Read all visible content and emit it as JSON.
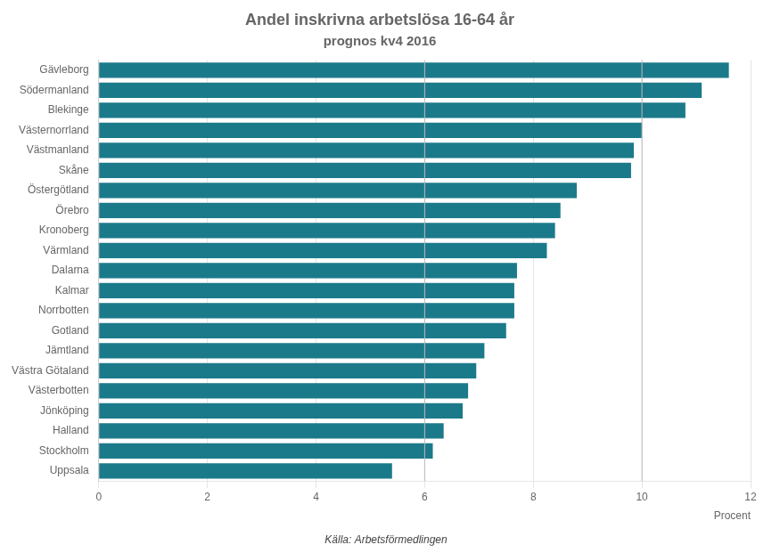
{
  "chart_data": {
    "type": "bar",
    "orientation": "horizontal",
    "title": "Andel inskrivna arbetslösa 16-64 år",
    "subtitle": "prognos kv4 2016",
    "categories": [
      "Gävleborg",
      "Södermanland",
      "Blekinge",
      "Västernorrland",
      "Västmanland",
      "Skåne",
      "Östergötland",
      "Örebro",
      "Kronoberg",
      "Värmland",
      "Dalarna",
      "Kalmar",
      "Norrbotten",
      "Gotland",
      "Jämtland",
      "Västra Götaland",
      "Västerbotten",
      "Jönköping",
      "Halland",
      "Stockholm",
      "Uppsala"
    ],
    "values": [
      11.6,
      11.1,
      10.8,
      10.0,
      9.85,
      9.8,
      8.8,
      8.5,
      8.4,
      8.25,
      7.7,
      7.65,
      7.65,
      7.5,
      7.1,
      6.95,
      6.8,
      6.7,
      6.35,
      6.15,
      5.4
    ],
    "color": "#1b7a8a",
    "xlabel": "Procent",
    "xlim": [
      0,
      12
    ],
    "xticks": [
      0,
      2,
      4,
      6,
      8,
      10,
      12
    ],
    "vlines": [
      6,
      10
    ],
    "grid": true,
    "source": "Källa: Arbetsförmedlingen"
  }
}
